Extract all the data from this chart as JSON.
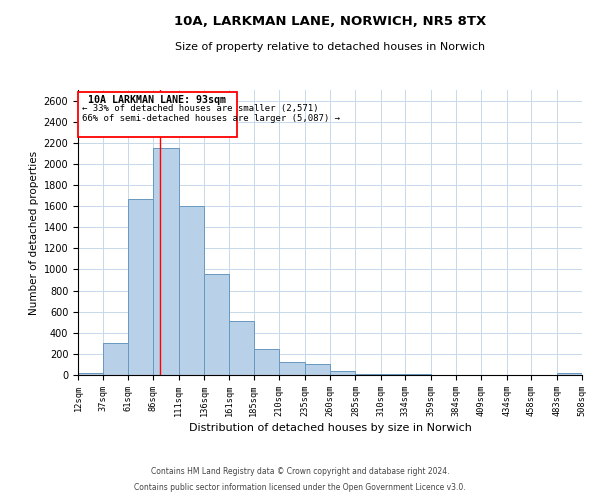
{
  "title_line1": "10A, LARKMAN LANE, NORWICH, NR5 8TX",
  "title_line2": "Size of property relative to detached houses in Norwich",
  "xlabel": "Distribution of detached houses by size in Norwich",
  "ylabel": "Number of detached properties",
  "bar_color": "#b8d0e8",
  "bar_edge_color": "#6898c0",
  "background_color": "#ffffff",
  "grid_color": "#c8d8ec",
  "redline_x": 93,
  "annotation_title": "10A LARKMAN LANE: 93sqm",
  "annotation_line1": "← 33% of detached houses are smaller (2,571)",
  "annotation_line2": "66% of semi-detached houses are larger (5,087) →",
  "bin_edges": [
    12,
    37,
    61,
    86,
    111,
    136,
    161,
    185,
    210,
    235,
    260,
    285,
    310,
    334,
    359,
    384,
    409,
    434,
    458,
    483,
    508
  ],
  "bin_values": [
    20,
    300,
    1670,
    2150,
    1600,
    960,
    510,
    250,
    125,
    100,
    40,
    10,
    5,
    5,
    3,
    2,
    2,
    2,
    2,
    15
  ],
  "ylim": [
    0,
    2700
  ],
  "yticks": [
    0,
    200,
    400,
    600,
    800,
    1000,
    1200,
    1400,
    1600,
    1800,
    2000,
    2200,
    2400,
    2600
  ],
  "footnote1": "Contains HM Land Registry data © Crown copyright and database right 2024.",
  "footnote2": "Contains public sector information licensed under the Open Government Licence v3.0."
}
